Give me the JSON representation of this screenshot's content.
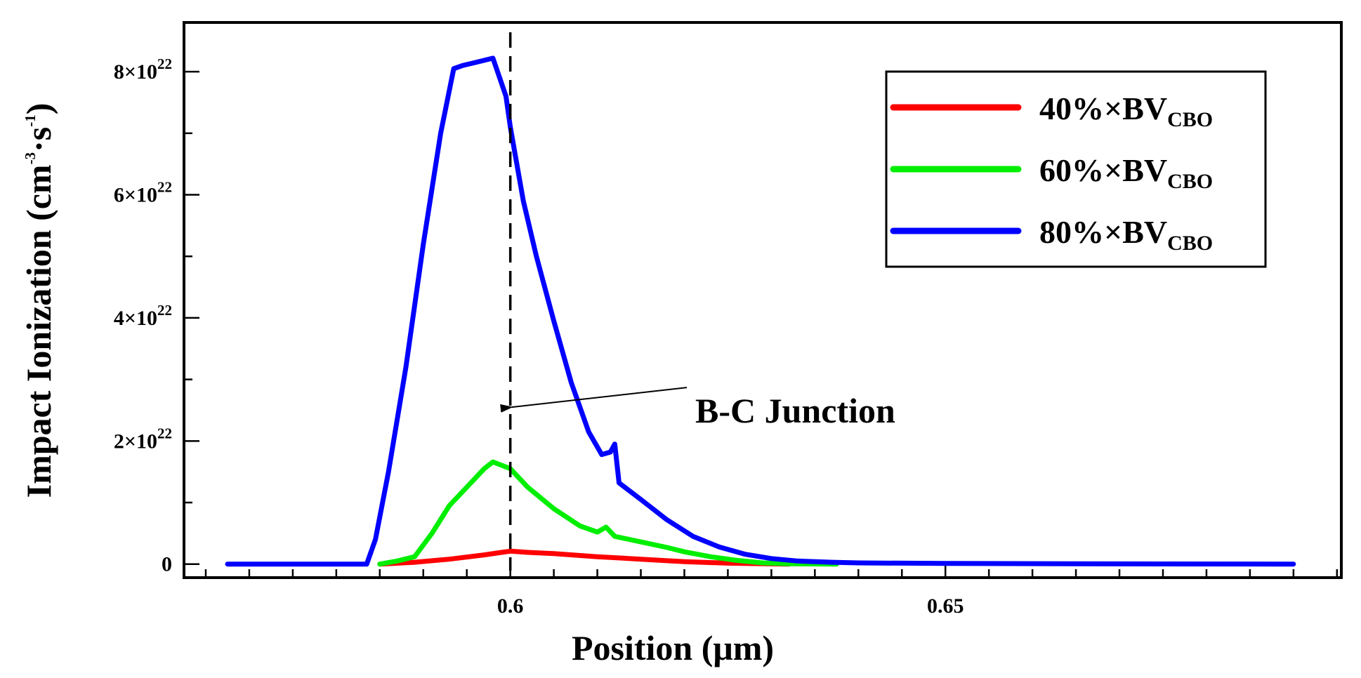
{
  "chart_data": {
    "type": "line",
    "title": "",
    "xlabel": "Position (μm)",
    "ylabel_main": "Impact Ionization (cm",
    "ylabel_exp1": "-3",
    "ylabel_mid": "·s",
    "ylabel_exp2": "-1",
    "ylabel_end": ")",
    "xlim": [
      0.5625,
      0.6955
    ],
    "ylim": [
      -2.2e+21,
      8.8e+22
    ],
    "x_ticks": [
      {
        "value": 0.6,
        "label": "0.6"
      },
      {
        "value": 0.65,
        "label": "0.65"
      }
    ],
    "x_minor_step": 0.005,
    "y_ticks": [
      {
        "value": 0,
        "mant": "0",
        "exp": ""
      },
      {
        "value": 2e+22,
        "mant": "2×10",
        "exp": "22"
      },
      {
        "value": 4e+22,
        "mant": "4×10",
        "exp": "22"
      },
      {
        "value": 6e+22,
        "mant": "6×10",
        "exp": "22"
      },
      {
        "value": 8e+22,
        "mant": "8×10",
        "exp": "22"
      }
    ],
    "y_minor_step": 1e+22,
    "legend_position": "top-right",
    "series": [
      {
        "name": "40%×BV",
        "name_sub": "CBO",
        "color": "#ff0000",
        "x": [
          0.585,
          0.589,
          0.593,
          0.597,
          0.599,
          0.6,
          0.602,
          0.605,
          0.61,
          0.615,
          0.62,
          0.625,
          0.63,
          0.632
        ],
        "y": [
          0,
          3e+20,
          8e+20,
          1.5e+21,
          1.9e+21,
          2.1e+21,
          1.9e+21,
          1.7e+21,
          1.2e+21,
          8e+20,
          4e+20,
          1.5e+20,
          3e+19,
          0
        ]
      },
      {
        "name": "60%×BV",
        "name_sub": "CBO",
        "color": "#00ee00",
        "x": [
          0.585,
          0.587,
          0.589,
          0.591,
          0.593,
          0.595,
          0.597,
          0.598,
          0.6,
          0.602,
          0.605,
          0.608,
          0.61,
          0.611,
          0.612,
          0.615,
          0.618,
          0.62,
          0.623,
          0.626,
          0.629,
          0.632,
          0.635,
          0.6375
        ],
        "y": [
          0,
          5e+20,
          1.2e+21,
          5e+21,
          9.5e+21,
          1.25e+22,
          1.55e+22,
          1.66e+22,
          1.55e+22,
          1.25e+22,
          9e+21,
          6.2e+21,
          5.2e+21,
          6e+21,
          4.5e+21,
          3.6e+21,
          2.7e+21,
          2e+21,
          1.2e+21,
          6e+20,
          2e+20,
          5e+19,
          2e+19,
          0
        ]
      },
      {
        "name": "80%×BV",
        "name_sub": "CBO",
        "color": "#0000ff",
        "x": [
          0.5675,
          0.578,
          0.5835,
          0.5845,
          0.586,
          0.588,
          0.59,
          0.592,
          0.5935,
          0.5945,
          0.596,
          0.598,
          0.5995,
          0.6,
          0.6015,
          0.603,
          0.605,
          0.607,
          0.609,
          0.6105,
          0.6115,
          0.612,
          0.6125,
          0.615,
          0.618,
          0.621,
          0.624,
          0.627,
          0.63,
          0.633,
          0.637,
          0.64,
          0.65,
          0.67,
          0.69
        ],
        "y": [
          0,
          0,
          0,
          4e+21,
          1.5e+22,
          3.2e+22,
          5.2e+22,
          7e+22,
          8.05e+22,
          8.1e+22,
          8.15e+22,
          8.22e+22,
          7.6e+22,
          7.1e+22,
          5.9e+22,
          5e+22,
          3.95e+22,
          2.95e+22,
          2.15e+22,
          1.78e+22,
          1.82e+22,
          1.95e+22,
          1.32e+22,
          1.05e+22,
          7.2e+21,
          4.5e+21,
          2.8e+21,
          1.6e+21,
          9e+20,
          5e+20,
          3e+20,
          2e+20,
          1e+20,
          3e+19,
          0
        ]
      }
    ],
    "annotations": [
      {
        "label": "B-C Junction",
        "x_line": 0.6,
        "arrow_to_y": 2.55e+22
      }
    ]
  }
}
